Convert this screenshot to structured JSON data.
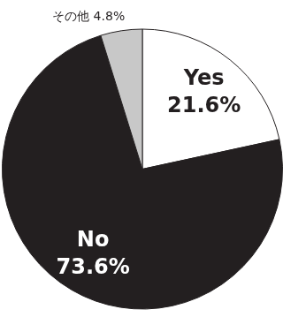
{
  "chart_data": {
    "type": "pie",
    "categories": [
      "Yes",
      "No",
      "その他"
    ],
    "values": [
      21.6,
      73.6,
      4.8
    ],
    "value_labels": [
      "21.6%",
      "73.6%",
      "4.8%"
    ],
    "colors": [
      "#ffffff",
      "#231f20",
      "#c8c8c8"
    ],
    "data_labels": true
  }
}
